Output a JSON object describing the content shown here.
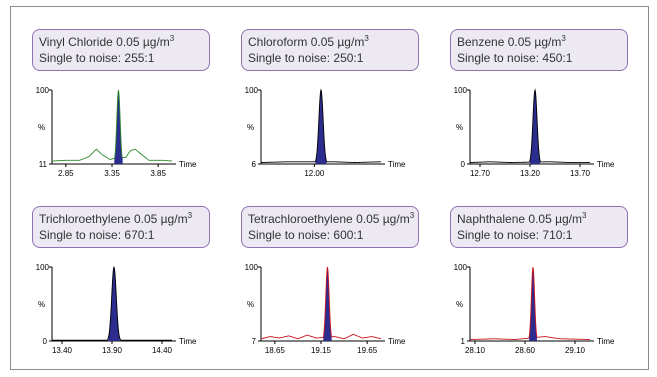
{
  "chart_data": [
    {
      "type": "line",
      "compound": "Vinyl Chloride",
      "concentration": "0.05 µg/m",
      "conc_exp": "3",
      "signal_to_noise_label": "Single to noise: 255:1",
      "y_top_label": "100",
      "y_mid_label": "%",
      "y_bottom_label": "11",
      "xlabel": "Time",
      "xlim": [
        2.7,
        4.0
      ],
      "ticks": [
        2.85,
        3.35,
        3.85
      ],
      "tick_labels": [
        "2.85",
        "3.35",
        "3.85"
      ],
      "peak_rt": 3.42,
      "peak_width": 0.04,
      "trace_color": "#2a8a2a",
      "fill_color": "#2c2c8e",
      "baseline": [
        [
          2.7,
          4
        ],
        [
          2.85,
          5
        ],
        [
          3.0,
          5
        ],
        [
          3.1,
          10
        ],
        [
          3.18,
          20
        ],
        [
          3.25,
          12
        ],
        [
          3.33,
          6
        ],
        [
          3.38,
          8
        ],
        [
          3.5,
          9
        ],
        [
          3.55,
          18
        ],
        [
          3.6,
          20
        ],
        [
          3.68,
          12
        ],
        [
          3.75,
          5
        ],
        [
          3.9,
          5
        ],
        [
          4.0,
          4
        ]
      ]
    },
    {
      "type": "line",
      "compound": "Chloroform",
      "concentration": "0.05 µg/m",
      "conc_exp": "3",
      "signal_to_noise_label": "Single to noise: 250:1",
      "y_top_label": "100",
      "y_mid_label": "%",
      "y_bottom_label": "6",
      "xlabel": "Time",
      "xlim": [
        11.6,
        12.5
      ],
      "ticks": [
        12.0
      ],
      "tick_labels": [
        "12.00"
      ],
      "peak_rt": 12.05,
      "peak_width": 0.035,
      "trace_color": "#000000",
      "fill_color": "#2c2c8e",
      "baseline": [
        [
          11.6,
          2
        ],
        [
          11.8,
          3
        ],
        [
          11.95,
          3
        ],
        [
          12.15,
          3
        ],
        [
          12.3,
          2
        ],
        [
          12.5,
          3
        ]
      ]
    },
    {
      "type": "line",
      "compound": "Benzene",
      "concentration": "0.05 µg/m",
      "conc_exp": "3",
      "signal_to_noise_label": "Single to noise: 450:1",
      "y_top_label": "100",
      "y_mid_label": "%",
      "y_bottom_label": "0",
      "xlabel": "Time",
      "xlim": [
        12.6,
        13.8
      ],
      "ticks": [
        12.7,
        13.2,
        13.7
      ],
      "tick_labels": [
        "12.70",
        "13.20",
        "13.70"
      ],
      "peak_rt": 13.25,
      "peak_width": 0.045,
      "trace_color": "#000000",
      "fill_color": "#2c2c8e",
      "baseline": [
        [
          12.6,
          2
        ],
        [
          12.8,
          3
        ],
        [
          13.0,
          2
        ],
        [
          13.4,
          3
        ],
        [
          13.6,
          2
        ],
        [
          13.8,
          2
        ]
      ]
    },
    {
      "type": "line",
      "compound": "Trichloroethylene",
      "concentration": "0.05 µg/m",
      "conc_exp": "3",
      "signal_to_noise_label": "Single to noise: 670:1",
      "y_top_label": "100",
      "y_mid_label": "%",
      "y_bottom_label": "0",
      "xlabel": "Time",
      "xlim": [
        13.3,
        14.5
      ],
      "ticks": [
        13.4,
        13.9,
        14.4
      ],
      "tick_labels": [
        "13.40",
        "13.90",
        "14.40"
      ],
      "peak_rt": 13.92,
      "peak_width": 0.05,
      "trace_color": "#000000",
      "fill_color": "#2c2c8e",
      "baseline": [
        [
          13.3,
          1
        ],
        [
          13.6,
          1
        ],
        [
          14.2,
          1
        ],
        [
          14.5,
          1
        ]
      ]
    },
    {
      "type": "line",
      "compound": "Tetrachloroethylene",
      "concentration": "0.05 µg/m",
      "conc_exp": "3",
      "signal_to_noise_label": "Single to noise: 600:1",
      "y_top_label": "100",
      "y_mid_label": "%",
      "y_bottom_label": "7",
      "xlabel": "Time",
      "xlim": [
        18.5,
        19.8
      ],
      "ticks": [
        18.65,
        19.15,
        19.65
      ],
      "tick_labels": [
        "18.65",
        "19.15",
        "19.65"
      ],
      "peak_rt": 19.22,
      "peak_width": 0.04,
      "trace_color": "#c8141e",
      "fill_color": "#2c2c8e",
      "baseline": [
        [
          18.5,
          3
        ],
        [
          18.6,
          6
        ],
        [
          18.7,
          4
        ],
        [
          18.8,
          7
        ],
        [
          18.9,
          3
        ],
        [
          19.0,
          8
        ],
        [
          19.1,
          4
        ],
        [
          19.3,
          6
        ],
        [
          19.4,
          3
        ],
        [
          19.5,
          9
        ],
        [
          19.6,
          4
        ],
        [
          19.7,
          6
        ],
        [
          19.8,
          3
        ]
      ]
    },
    {
      "type": "line",
      "compound": "Naphthalene",
      "concentration": "0.05 µg/m",
      "conc_exp": "3",
      "signal_to_noise_label": "Single to noise: 710:1",
      "y_top_label": "100",
      "y_mid_label": "%",
      "y_bottom_label": "1",
      "xlabel": "Time",
      "xlim": [
        28.05,
        29.25
      ],
      "ticks": [
        28.1,
        28.6,
        29.1
      ],
      "tick_labels": [
        "28.10",
        "28.60",
        "29.10"
      ],
      "peak_rt": 28.68,
      "peak_width": 0.035,
      "trace_color": "#c8141e",
      "fill_color": "#2c2c8e",
      "baseline": [
        [
          28.05,
          2
        ],
        [
          28.3,
          3
        ],
        [
          28.5,
          2
        ],
        [
          28.8,
          6
        ],
        [
          28.95,
          3
        ],
        [
          29.25,
          2
        ]
      ]
    }
  ]
}
